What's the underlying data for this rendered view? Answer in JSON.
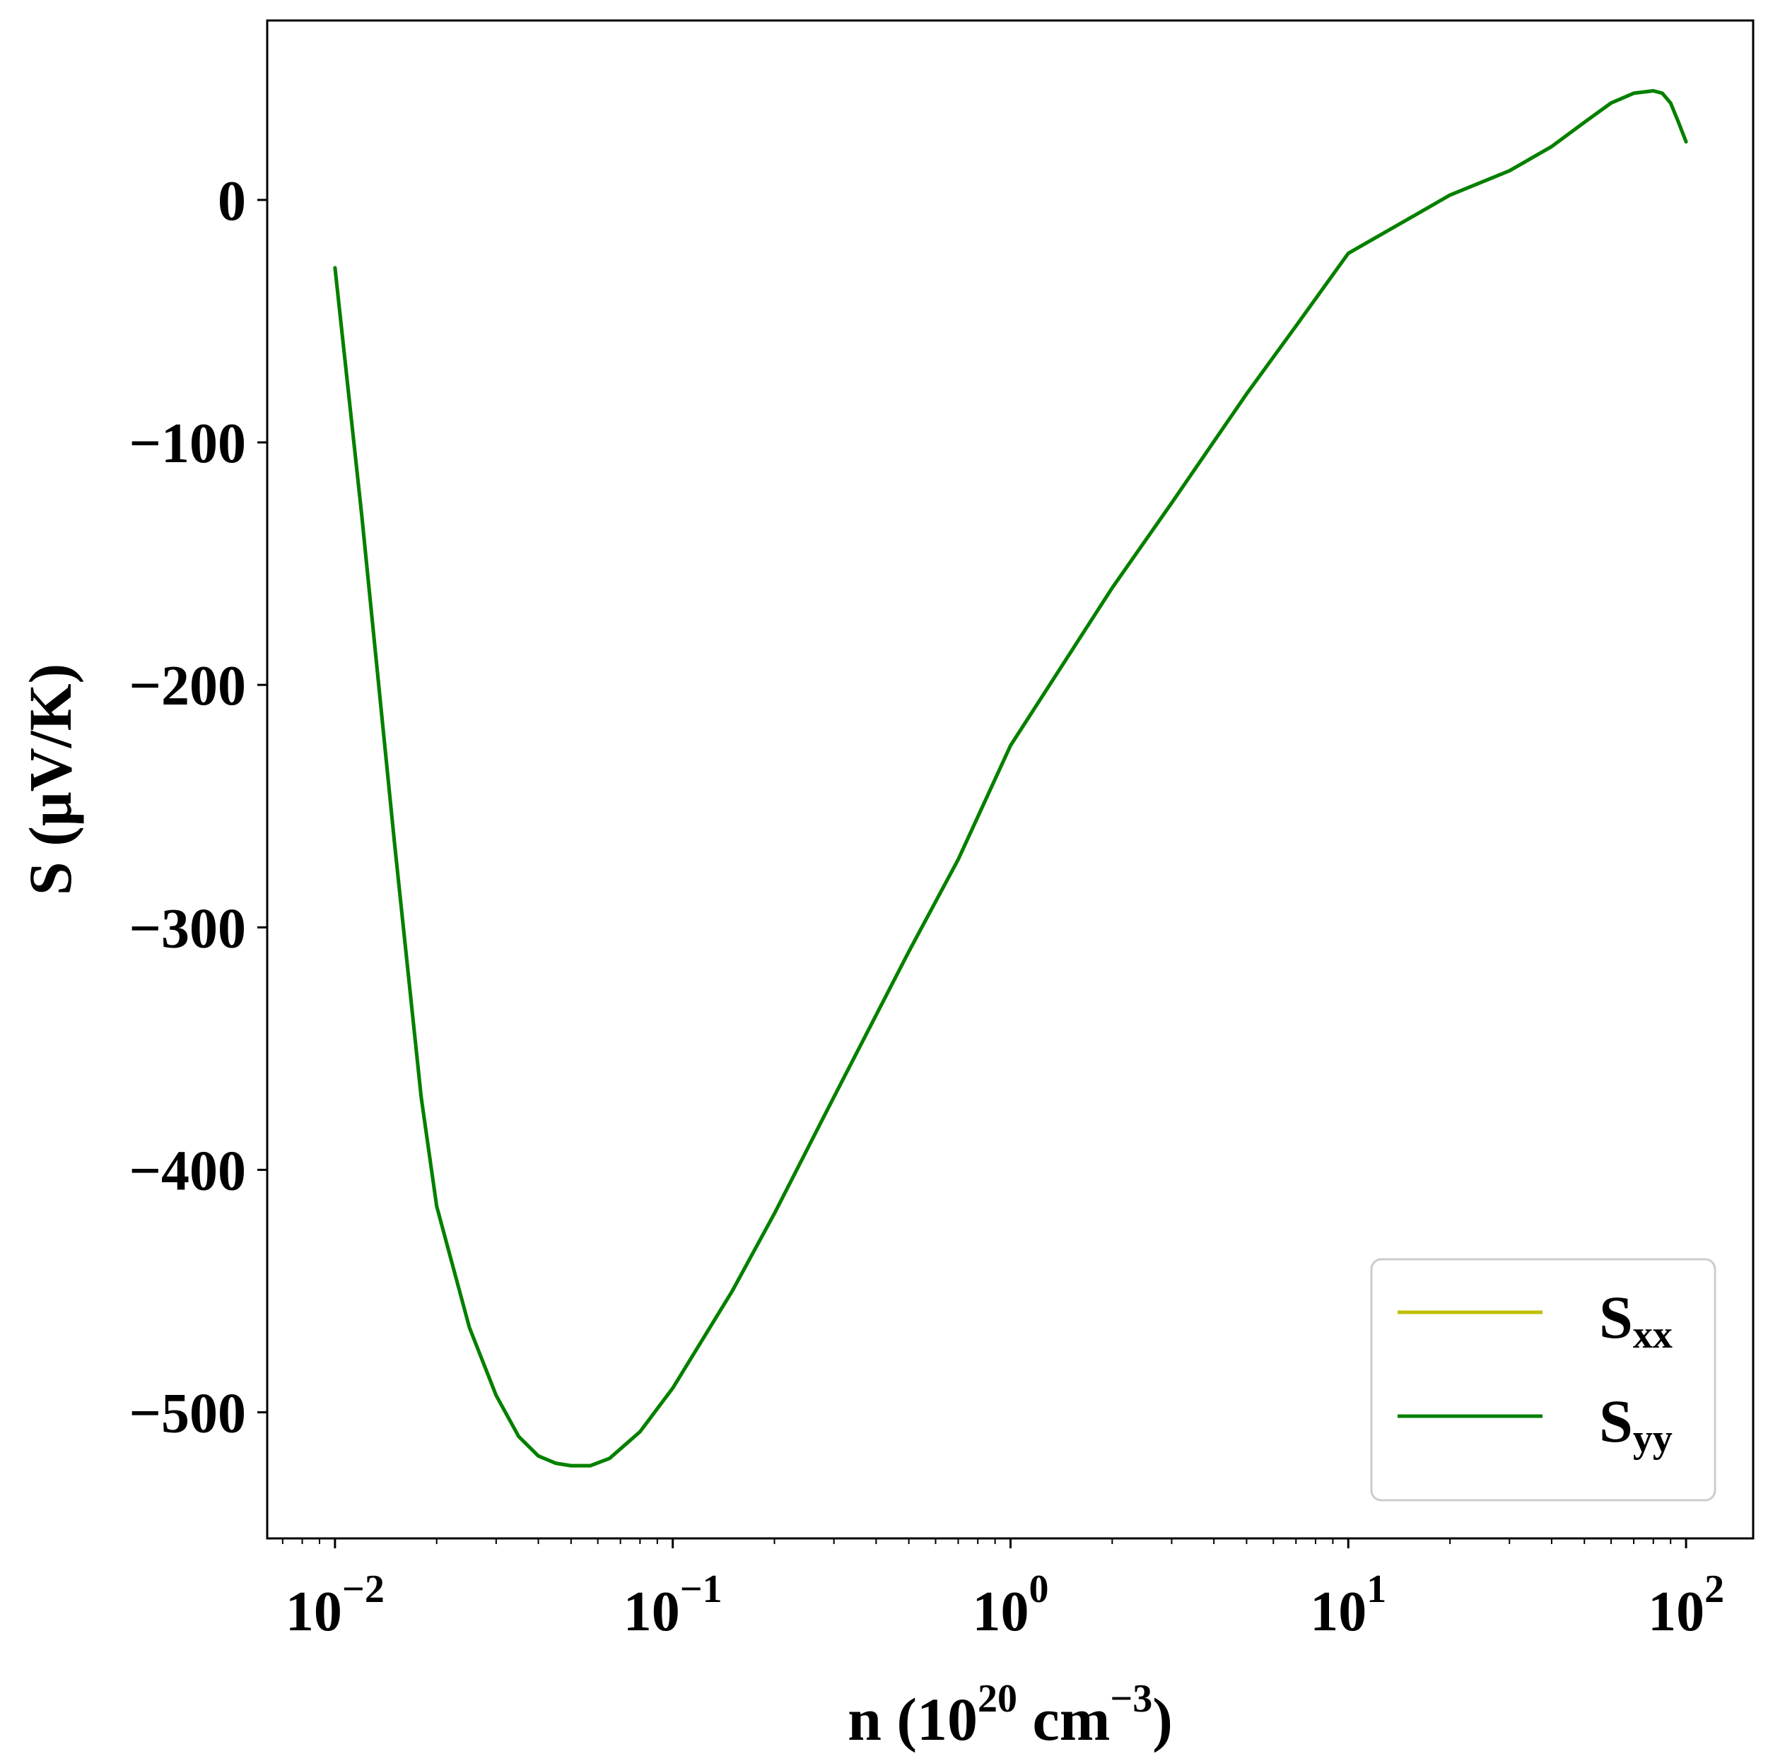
{
  "chart_data": {
    "type": "line",
    "xscale": "log",
    "xlim": [
      0.0063,
      158
    ],
    "ylim": [
      -552,
      74
    ],
    "xlabel": {
      "main": "n (10",
      "sup1": "20",
      "mid": " cm",
      "sup2": "−3",
      "end": ")"
    },
    "ylabel": "S (μV/K)",
    "xticks": [
      {
        "value": 0.01,
        "base": "10",
        "exp": "−2"
      },
      {
        "value": 0.1,
        "base": "10",
        "exp": "−1"
      },
      {
        "value": 1,
        "base": "10",
        "exp": "0"
      },
      {
        "value": 10,
        "base": "10",
        "exp": "1"
      },
      {
        "value": 100,
        "base": "10",
        "exp": "2"
      }
    ],
    "yticks": [
      {
        "value": 0,
        "label": "0"
      },
      {
        "value": -100,
        "label": "−100"
      },
      {
        "value": -200,
        "label": "−200"
      },
      {
        "value": -300,
        "label": "−300"
      },
      {
        "value": -400,
        "label": "−400"
      },
      {
        "value": -500,
        "label": "−500"
      }
    ],
    "legend": {
      "placement": "bottom-right"
    },
    "series": [
      {
        "name": "S",
        "name_sub": "xx",
        "color": "#bfbf00",
        "x": [
          0.01,
          0.012,
          0.015,
          0.018,
          0.02,
          0.025,
          0.03,
          0.035,
          0.04,
          0.045,
          0.05,
          0.057,
          0.065,
          0.08,
          0.1,
          0.15,
          0.2,
          0.3,
          0.5,
          0.7,
          1,
          2,
          3,
          5,
          7,
          10,
          20,
          30,
          40,
          50,
          60,
          70,
          80,
          85,
          90,
          95,
          100
        ],
        "y": [
          -28,
          -130,
          -265,
          -370,
          -415,
          -465,
          -493,
          -510,
          -518,
          -521,
          -522,
          -522,
          -519,
          -508,
          -490,
          -450,
          -418,
          -370,
          -310,
          -272,
          -225,
          -160,
          -125,
          -80,
          -52,
          -22,
          2,
          12,
          22,
          32,
          40,
          44,
          45,
          44,
          40,
          32,
          24
        ]
      },
      {
        "name": "S",
        "name_sub": "yy",
        "color": "#008000",
        "x": [
          0.01,
          0.012,
          0.015,
          0.018,
          0.02,
          0.025,
          0.03,
          0.035,
          0.04,
          0.045,
          0.05,
          0.057,
          0.065,
          0.08,
          0.1,
          0.15,
          0.2,
          0.3,
          0.5,
          0.7,
          1,
          2,
          3,
          5,
          7,
          10,
          20,
          30,
          40,
          50,
          60,
          70,
          80,
          85,
          90,
          95,
          100
        ],
        "y": [
          -28,
          -130,
          -265,
          -370,
          -415,
          -465,
          -493,
          -510,
          -518,
          -521,
          -522,
          -522,
          -519,
          -508,
          -490,
          -450,
          -418,
          -370,
          -310,
          -272,
          -225,
          -160,
          -125,
          -80,
          -52,
          -22,
          2,
          12,
          22,
          32,
          40,
          44,
          45,
          44,
          40,
          32,
          24
        ]
      }
    ]
  }
}
